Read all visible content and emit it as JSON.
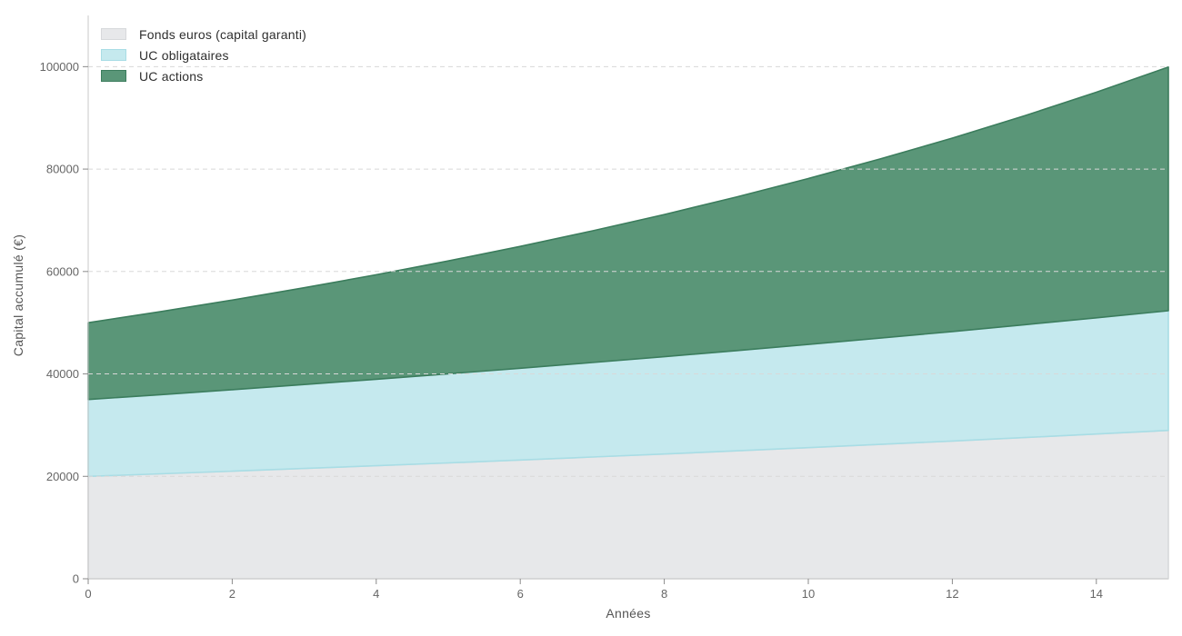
{
  "chart_data": {
    "type": "area",
    "stacked": true,
    "title": "",
    "xlabel": "Années",
    "ylabel": "Capital accumulé (€)",
    "x": [
      0,
      1,
      2,
      3,
      4,
      5,
      6,
      7,
      8,
      9,
      10,
      11,
      12,
      13,
      14,
      15
    ],
    "series": [
      {
        "name": "Fonds euros (capital garanti)",
        "color": "#e7e8ea",
        "edge_color": "#d7d9db",
        "values": [
          20000,
          20500,
          21013,
          21538,
          22076,
          22628,
          23194,
          23774,
          24368,
          24977,
          25602,
          26242,
          26898,
          27570,
          28259,
          28966
        ]
      },
      {
        "name": "UC obligataires",
        "color": "#c5e9ee",
        "edge_color": "#a8dde5",
        "values": [
          15000,
          15450,
          15914,
          16391,
          16883,
          17389,
          17911,
          18448,
          19002,
          19572,
          20159,
          20764,
          21386,
          22028,
          22689,
          23370
        ]
      },
      {
        "name": "UC actions",
        "color": "#5a9678",
        "edge_color": "#3c7d5d",
        "values": [
          15000,
          16200,
          17496,
          18896,
          20407,
          22040,
          23803,
          25707,
          27764,
          29985,
          32384,
          34975,
          37773,
          40794,
          44058,
          47583
        ]
      }
    ],
    "xlim": [
      0,
      15
    ],
    "ylim": [
      0,
      110000
    ],
    "x_ticks": [
      0,
      2,
      4,
      6,
      8,
      10,
      12,
      14
    ],
    "y_ticks": [
      0,
      20000,
      40000,
      60000,
      80000,
      100000
    ],
    "grid": "horizontal-dashed",
    "grid_color": "#d8d8d8",
    "spine_color": "#c9c9c9",
    "tick_color": "#8a8a8a",
    "tick_label_color": "#666666",
    "axis_label_color": "#555555",
    "legend_position": "top-left",
    "background_color": "#ffffff"
  }
}
